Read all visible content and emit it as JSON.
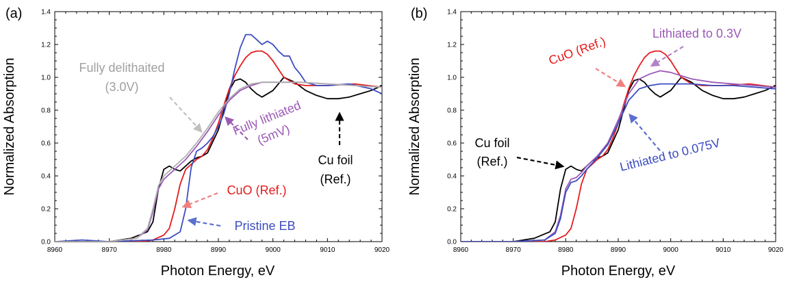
{
  "chart_data": [
    {
      "type": "line",
      "panel_label": "(a)",
      "xlabel": "Photon Energy, eV",
      "ylabel": "Normalized Absorption",
      "xlim": [
        8960,
        9020
      ],
      "ylim": [
        0,
        1.4
      ],
      "xticks": [
        "8960",
        "8970",
        "8980",
        "8990",
        "9000",
        "9010",
        "9020"
      ],
      "yticks": [
        "0.0",
        "0.2",
        "0.4",
        "0.6",
        "0.8",
        "1.0",
        "1.2",
        "1.4"
      ],
      "grid": false,
      "series": [
        {
          "color": "#000000",
          "x": [
            8960,
            8970,
            8974,
            8977,
            8978,
            8979,
            8980,
            8981,
            8982,
            8983,
            8984,
            8985,
            8986,
            8987,
            8988,
            8990,
            8991,
            8992,
            8993,
            8994,
            8995,
            8996,
            8997,
            8998,
            9000,
            9002,
            9004,
            9006,
            9008,
            9010,
            9012,
            9014,
            9016,
            9018,
            9020
          ],
          "y": [
            0,
            0,
            0.02,
            0.06,
            0.12,
            0.32,
            0.44,
            0.46,
            0.44,
            0.43,
            0.46,
            0.49,
            0.51,
            0.52,
            0.54,
            0.68,
            0.8,
            0.92,
            0.98,
            0.99,
            0.97,
            0.93,
            0.9,
            0.88,
            0.92,
            1.0,
            0.97,
            0.92,
            0.89,
            0.87,
            0.87,
            0.88,
            0.9,
            0.92,
            0.95
          ]
        },
        {
          "color": "#e41a1c",
          "x": [
            8960,
            8976,
            8978,
            8980,
            8981,
            8982,
            8983,
            8984,
            8985,
            8986,
            8987,
            8988,
            8989,
            8990,
            8991,
            8992,
            8993,
            8994,
            8995,
            8996,
            8997,
            8998,
            8999,
            9000,
            9001,
            9002,
            9004,
            9006,
            9010,
            9015,
            9020
          ],
          "y": [
            0,
            0,
            0.01,
            0.04,
            0.08,
            0.2,
            0.35,
            0.44,
            0.47,
            0.5,
            0.52,
            0.56,
            0.63,
            0.72,
            0.83,
            0.93,
            1.01,
            1.07,
            1.12,
            1.15,
            1.16,
            1.16,
            1.14,
            1.1,
            1.05,
            1.0,
            0.96,
            0.95,
            0.95,
            0.96,
            0.94
          ]
        },
        {
          "color": "#3b4cc0",
          "x": [
            8960,
            8965,
            8970,
            8978,
            8981,
            8983,
            8984,
            8985,
            8986,
            8987,
            8988,
            8989,
            8990,
            8991,
            8992,
            8993,
            8994,
            8995,
            8996,
            8997,
            8998,
            8999,
            9000,
            9001,
            9002,
            9003,
            9004,
            9005,
            9006,
            9008,
            9010,
            9014,
            9018,
            9020
          ],
          "y": [
            0,
            0.01,
            0,
            0.01,
            0.02,
            0.06,
            0.2,
            0.45,
            0.55,
            0.57,
            0.6,
            0.64,
            0.7,
            0.78,
            0.9,
            1.05,
            1.18,
            1.26,
            1.26,
            1.23,
            1.2,
            1.22,
            1.2,
            1.16,
            1.13,
            1.13,
            1.06,
            1.02,
            0.97,
            0.95,
            0.95,
            0.96,
            0.93,
            0.9
          ]
        },
        {
          "color": "#9b59b6",
          "x": [
            8960,
            8970,
            8975,
            8977,
            8978,
            8979,
            8980,
            8982,
            8984,
            8986,
            8988,
            8990,
            8992,
            8994,
            8996,
            8998,
            9000,
            9002,
            9005,
            9010,
            9015,
            9020
          ],
          "y": [
            0,
            0,
            0.02,
            0.07,
            0.18,
            0.32,
            0.38,
            0.44,
            0.5,
            0.58,
            0.67,
            0.77,
            0.86,
            0.92,
            0.95,
            0.97,
            0.97,
            0.97,
            0.97,
            0.96,
            0.95,
            0.94
          ]
        },
        {
          "color": "#b0b0b0",
          "x": [
            8960,
            8970,
            8975,
            8977,
            8978,
            8979,
            8980,
            8982,
            8984,
            8986,
            8988,
            8990,
            8992,
            8994,
            8996,
            8998,
            9000,
            9002,
            9005,
            9010,
            9015,
            9020
          ],
          "y": [
            0,
            0,
            0.02,
            0.08,
            0.2,
            0.34,
            0.4,
            0.46,
            0.52,
            0.6,
            0.69,
            0.79,
            0.87,
            0.93,
            0.96,
            0.97,
            0.97,
            0.97,
            0.97,
            0.96,
            0.95,
            0.94
          ]
        }
      ],
      "annotations": [
        {
          "lines": [
            "Fully delithaited",
            "(3.0V)"
          ],
          "color": "#a0a0a0"
        },
        {
          "lines": [
            "Fully lithiated",
            "(5mV)"
          ],
          "color": "#9b59b6"
        },
        {
          "lines": [
            "Cu foil",
            "(Ref.)"
          ],
          "color": "#000000"
        },
        {
          "lines": [
            "CuO (Ref.)"
          ],
          "color": "#e41a1c"
        },
        {
          "lines": [
            "Pristine EB"
          ],
          "color": "#3b4cc0"
        }
      ]
    },
    {
      "type": "line",
      "panel_label": "(b)",
      "xlabel": "Photon Energy, eV",
      "ylabel": "Normalized Absorption",
      "xlim": [
        8960,
        9020
      ],
      "ylim": [
        0,
        1.4
      ],
      "xticks": [
        "8960",
        "8970",
        "8980",
        "8990",
        "9000",
        "9010",
        "9020"
      ],
      "yticks": [
        "0.0",
        "0.2",
        "0.4",
        "0.6",
        "0.8",
        "1.0",
        "1.2",
        "1.4"
      ],
      "grid": false,
      "series": [
        {
          "color": "#000000",
          "x": [
            8960,
            8970,
            8974,
            8977,
            8978,
            8979,
            8980,
            8981,
            8982,
            8983,
            8984,
            8985,
            8986,
            8987,
            8988,
            8990,
            8991,
            8992,
            8993,
            8994,
            8995,
            8996,
            8997,
            8998,
            9000,
            9002,
            9004,
            9006,
            9008,
            9010,
            9012,
            9014,
            9016,
            9018,
            9020
          ],
          "y": [
            0,
            0,
            0.02,
            0.06,
            0.12,
            0.32,
            0.44,
            0.46,
            0.44,
            0.43,
            0.46,
            0.49,
            0.51,
            0.52,
            0.54,
            0.68,
            0.8,
            0.92,
            0.98,
            0.99,
            0.97,
            0.93,
            0.9,
            0.88,
            0.92,
            1.0,
            0.97,
            0.92,
            0.89,
            0.87,
            0.87,
            0.88,
            0.9,
            0.92,
            0.95
          ]
        },
        {
          "color": "#e41a1c",
          "x": [
            8960,
            8976,
            8978,
            8980,
            8981,
            8982,
            8983,
            8984,
            8985,
            8986,
            8987,
            8988,
            8989,
            8990,
            8991,
            8992,
            8993,
            8994,
            8995,
            8996,
            8997,
            8998,
            8999,
            9000,
            9001,
            9002,
            9004,
            9006,
            9010,
            9015,
            9020
          ],
          "y": [
            0,
            0,
            0.01,
            0.04,
            0.08,
            0.2,
            0.35,
            0.44,
            0.47,
            0.5,
            0.52,
            0.56,
            0.63,
            0.72,
            0.83,
            0.93,
            1.01,
            1.07,
            1.12,
            1.15,
            1.16,
            1.16,
            1.14,
            1.1,
            1.05,
            1.0,
            0.96,
            0.95,
            0.95,
            0.96,
            0.94
          ]
        },
        {
          "color": "#9b59b6",
          "x": [
            8960,
            8970,
            8976,
            8978,
            8979,
            8980,
            8981,
            8982,
            8983,
            8984,
            8986,
            8988,
            8990,
            8992,
            8994,
            8996,
            8998,
            9000,
            9002,
            9004,
            9008,
            9012,
            9016,
            9020
          ],
          "y": [
            0,
            0,
            0.01,
            0.06,
            0.16,
            0.32,
            0.38,
            0.39,
            0.42,
            0.46,
            0.52,
            0.6,
            0.74,
            0.9,
            0.99,
            1.02,
            1.04,
            1.03,
            1.01,
            0.99,
            0.97,
            0.96,
            0.95,
            0.94
          ]
        },
        {
          "color": "#3b4cc0",
          "x": [
            8960,
            8970,
            8976,
            8978,
            8979,
            8980,
            8981,
            8982,
            8983,
            8984,
            8986,
            8988,
            8990,
            8992,
            8994,
            8996,
            8998,
            9000,
            9004,
            9008,
            9012,
            9016,
            9020
          ],
          "y": [
            0,
            0,
            0.01,
            0.05,
            0.14,
            0.3,
            0.36,
            0.37,
            0.4,
            0.44,
            0.51,
            0.59,
            0.72,
            0.86,
            0.93,
            0.95,
            0.96,
            0.96,
            0.96,
            0.95,
            0.95,
            0.94,
            0.93
          ]
        }
      ],
      "annotations": [
        {
          "lines": [
            "CuO (Ref.)"
          ],
          "color": "#e41a1c"
        },
        {
          "lines": [
            "Lithiated to 0.3V"
          ],
          "color": "#9b59b6"
        },
        {
          "lines": [
            "Lithiated to 0.075V"
          ],
          "color": "#3b4cc0"
        },
        {
          "lines": [
            "Cu foil",
            "(Ref.)"
          ],
          "color": "#000000"
        }
      ]
    }
  ]
}
